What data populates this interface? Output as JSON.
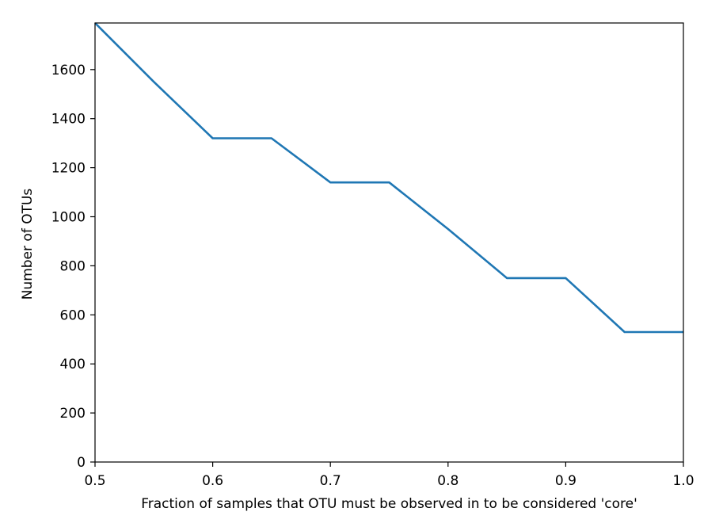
{
  "chart_data": {
    "type": "line",
    "title": "",
    "xlabel": "Fraction of samples that OTU must be observed in to be considered 'core'",
    "ylabel": "Number of OTUs",
    "xlim": [
      0.5,
      1.0
    ],
    "ylim": [
      0,
      1790
    ],
    "xticks": [
      0.5,
      0.6,
      0.7,
      0.8,
      0.9,
      1.0
    ],
    "xtick_labels": [
      "0.5",
      "0.6",
      "0.7",
      "0.8",
      "0.9",
      "1.0"
    ],
    "yticks": [
      0,
      200,
      400,
      600,
      800,
      1000,
      1200,
      1400,
      1600
    ],
    "ytick_labels": [
      "0",
      "200",
      "400",
      "600",
      "800",
      "1000",
      "1200",
      "1400",
      "1600"
    ],
    "grid": false,
    "color": "#1f77b4",
    "series": [
      {
        "x": [
          0.5,
          0.55,
          0.6,
          0.65,
          0.7,
          0.75,
          0.8,
          0.85,
          0.9,
          0.95,
          1.0
        ],
        "y": [
          1790,
          1550,
          1320,
          1320,
          1140,
          1140,
          950,
          750,
          750,
          530,
          530
        ]
      }
    ]
  }
}
